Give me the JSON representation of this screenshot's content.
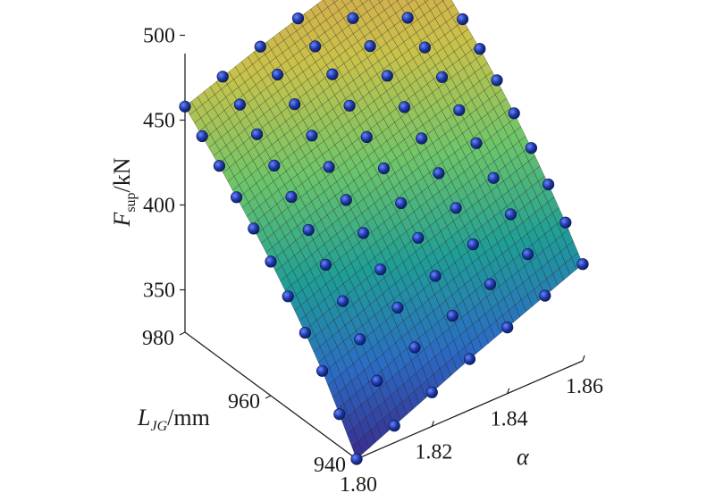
{
  "chart_data": {
    "type": "surface3d",
    "title": "",
    "zlabel": {
      "main": "F",
      "sub": "sup",
      "unit": "/kN"
    },
    "ylabel": {
      "main": "L",
      "sub": "JG",
      "unit": "/mm"
    },
    "xlabel": "α",
    "ztick_labels": [
      "350",
      "400",
      "450",
      "500"
    ],
    "ytick_labels": [
      "940",
      "960",
      "980"
    ],
    "xtick_labels": [
      "1.80",
      "1.82",
      "1.84",
      "1.86"
    ],
    "z_ticks": [
      350,
      400,
      450,
      500
    ],
    "y_ticks": [
      940,
      960,
      980
    ],
    "x_ticks": [
      1.8,
      1.82,
      1.84,
      1.86
    ],
    "xlim": [
      1.8,
      1.86
    ],
    "ylim": [
      940,
      980
    ],
    "zlim": [
      325,
      500
    ],
    "colormap": [
      "#3a2a8c",
      "#2b6cc4",
      "#1f9e96",
      "#6cc56a",
      "#c9c24a",
      "#d8a050"
    ],
    "marker_color": "#1f3aa8",
    "points": [
      [
        1.8,
        940,
        325
      ],
      [
        1.8,
        944,
        344
      ],
      [
        1.8,
        948,
        362
      ],
      [
        1.8,
        952,
        377
      ],
      [
        1.8,
        956,
        391
      ],
      [
        1.8,
        960,
        404
      ],
      [
        1.8,
        964,
        416
      ],
      [
        1.8,
        968,
        427
      ],
      [
        1.8,
        972,
        438
      ],
      [
        1.8,
        976,
        448
      ],
      [
        1.8,
        980,
        458
      ],
      [
        1.81,
        940,
        335
      ],
      [
        1.81,
        944,
        354
      ],
      [
        1.81,
        948,
        371
      ],
      [
        1.81,
        952,
        386
      ],
      [
        1.81,
        956,
        400
      ],
      [
        1.81,
        960,
        413
      ],
      [
        1.81,
        964,
        425
      ],
      [
        1.81,
        968,
        436
      ],
      [
        1.81,
        972,
        447
      ],
      [
        1.81,
        976,
        457
      ],
      [
        1.81,
        980,
        466
      ],
      [
        1.82,
        940,
        345
      ],
      [
        1.82,
        944,
        364
      ],
      [
        1.82,
        948,
        380
      ],
      [
        1.82,
        952,
        395
      ],
      [
        1.82,
        956,
        409
      ],
      [
        1.82,
        960,
        421
      ],
      [
        1.82,
        964,
        433
      ],
      [
        1.82,
        968,
        444
      ],
      [
        1.82,
        972,
        455
      ],
      [
        1.82,
        976,
        465
      ],
      [
        1.82,
        980,
        474
      ],
      [
        1.83,
        940,
        355
      ],
      [
        1.83,
        944,
        373
      ],
      [
        1.83,
        948,
        389
      ],
      [
        1.83,
        952,
        404
      ],
      [
        1.83,
        956,
        417
      ],
      [
        1.83,
        960,
        430
      ],
      [
        1.83,
        964,
        441
      ],
      [
        1.83,
        968,
        452
      ],
      [
        1.83,
        972,
        463
      ],
      [
        1.83,
        976,
        472
      ],
      [
        1.83,
        980,
        481
      ],
      [
        1.84,
        940,
        364
      ],
      [
        1.84,
        944,
        382
      ],
      [
        1.84,
        948,
        398
      ],
      [
        1.84,
        952,
        412
      ],
      [
        1.84,
        956,
        425
      ],
      [
        1.84,
        960,
        438
      ],
      [
        1.84,
        964,
        449
      ],
      [
        1.84,
        968,
        460
      ],
      [
        1.84,
        972,
        470
      ],
      [
        1.84,
        976,
        479
      ],
      [
        1.84,
        980,
        488
      ],
      [
        1.85,
        940,
        373
      ],
      [
        1.85,
        944,
        390
      ],
      [
        1.85,
        948,
        406
      ],
      [
        1.85,
        952,
        420
      ],
      [
        1.85,
        956,
        433
      ],
      [
        1.85,
        960,
        445
      ],
      [
        1.85,
        964,
        457
      ],
      [
        1.85,
        968,
        467
      ],
      [
        1.85,
        972,
        477
      ],
      [
        1.85,
        976,
        486
      ],
      [
        1.85,
        980,
        495
      ],
      [
        1.86,
        940,
        382
      ],
      [
        1.86,
        944,
        399
      ],
      [
        1.86,
        948,
        414
      ],
      [
        1.86,
        952,
        428
      ],
      [
        1.86,
        956,
        441
      ],
      [
        1.86,
        960,
        453
      ],
      [
        1.86,
        964,
        464
      ],
      [
        1.86,
        968,
        474
      ],
      [
        1.86,
        972,
        484
      ],
      [
        1.86,
        976,
        493
      ],
      [
        1.86,
        980,
        502
      ]
    ],
    "grid": false,
    "legend": "none"
  }
}
